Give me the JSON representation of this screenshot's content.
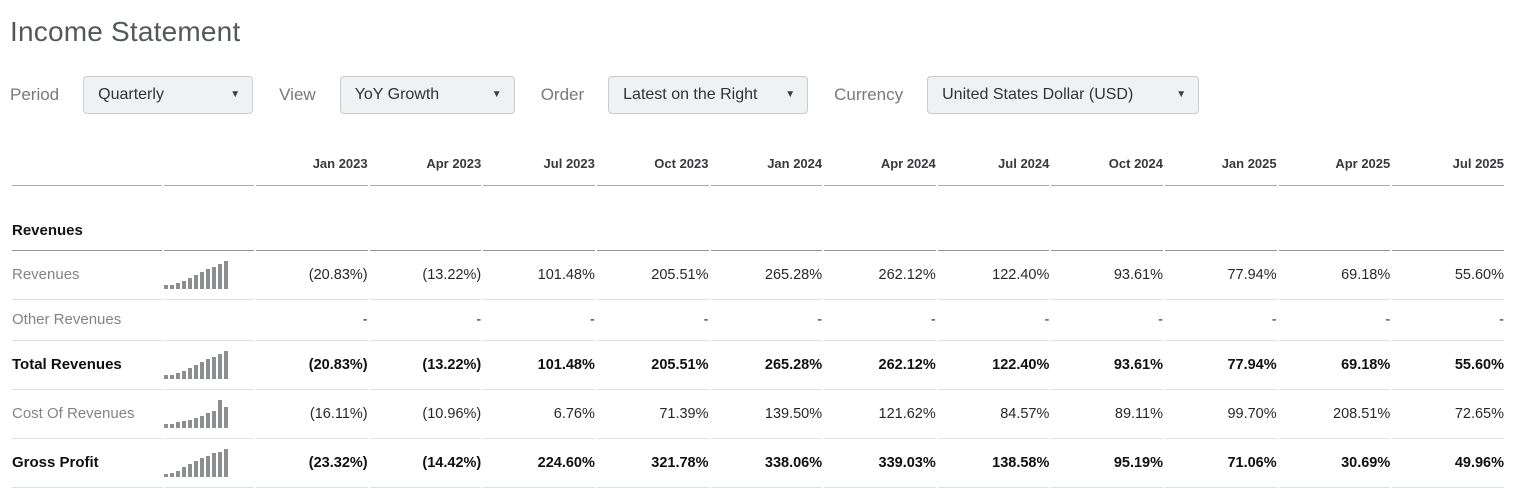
{
  "page": {
    "title": "Income Statement"
  },
  "filters": [
    {
      "id": "period",
      "label": "Period",
      "value": "Quarterly",
      "icon": "chevron-down-icon",
      "icon_glyph": "▼"
    },
    {
      "id": "view",
      "label": "View",
      "value": "YoY Growth",
      "icon": "chevron-down-icon",
      "icon_glyph": "▼"
    },
    {
      "id": "order",
      "label": "Order",
      "value": "Latest on the Right",
      "icon": "chevron-down-icon",
      "icon_glyph": "▼"
    },
    {
      "id": "currency",
      "label": "Currency",
      "value": "United States Dollar (USD)",
      "icon": "chevron-down-icon",
      "icon_glyph": "▼"
    }
  ],
  "table": {
    "columns": [
      "Jan 2023",
      "Apr 2023",
      "Jul 2023",
      "Oct 2023",
      "Jan 2024",
      "Apr 2024",
      "Jul 2024",
      "Oct 2024",
      "Jan 2025",
      "Apr 2025",
      "Jul 2025"
    ],
    "section_header": "Revenues",
    "rows": [
      {
        "id": "revenues",
        "label": "Revenues",
        "bold": false,
        "sparkline": [
          0.13,
          0.13,
          0.2,
          0.3,
          0.4,
          0.5,
          0.6,
          0.7,
          0.8,
          0.9,
          1.0
        ],
        "values": [
          "(20.83%)",
          "(13.22%)",
          "101.48%",
          "205.51%",
          "265.28%",
          "262.12%",
          "122.40%",
          "93.61%",
          "77.94%",
          "69.18%",
          "55.60%"
        ]
      },
      {
        "id": "other-revenues",
        "label": "Other Revenues",
        "bold": false,
        "sparkline": null,
        "values": [
          "-",
          "-",
          "-",
          "-",
          "-",
          "-",
          "-",
          "-",
          "-",
          "-",
          "-"
        ]
      },
      {
        "id": "total-revenues",
        "label": "Total Revenues",
        "bold": true,
        "sparkline": [
          0.13,
          0.13,
          0.2,
          0.3,
          0.4,
          0.5,
          0.6,
          0.7,
          0.8,
          0.9,
          1.0
        ],
        "values": [
          "(20.83%)",
          "(13.22%)",
          "101.48%",
          "205.51%",
          "265.28%",
          "262.12%",
          "122.40%",
          "93.61%",
          "77.94%",
          "69.18%",
          "55.60%"
        ]
      },
      {
        "id": "cost-of-revenues",
        "label": "Cost Of Revenues",
        "bold": false,
        "sparkline": [
          0.16,
          0.16,
          0.2,
          0.25,
          0.3,
          0.36,
          0.44,
          0.55,
          0.62,
          1.0,
          0.76
        ],
        "values": [
          "(16.11%)",
          "(10.96%)",
          "6.76%",
          "71.39%",
          "139.50%",
          "121.62%",
          "84.57%",
          "89.11%",
          "99.70%",
          "208.51%",
          "72.65%"
        ]
      },
      {
        "id": "gross-profit",
        "label": "Gross Profit",
        "bold": true,
        "sparkline": [
          0.1,
          0.13,
          0.22,
          0.34,
          0.46,
          0.57,
          0.67,
          0.76,
          0.84,
          0.9,
          1.0
        ],
        "values": [
          "(23.32%)",
          "(14.42%)",
          "224.60%",
          "321.78%",
          "338.06%",
          "339.03%",
          "138.58%",
          "95.19%",
          "71.06%",
          "30.69%",
          "49.96%"
        ]
      }
    ]
  }
}
